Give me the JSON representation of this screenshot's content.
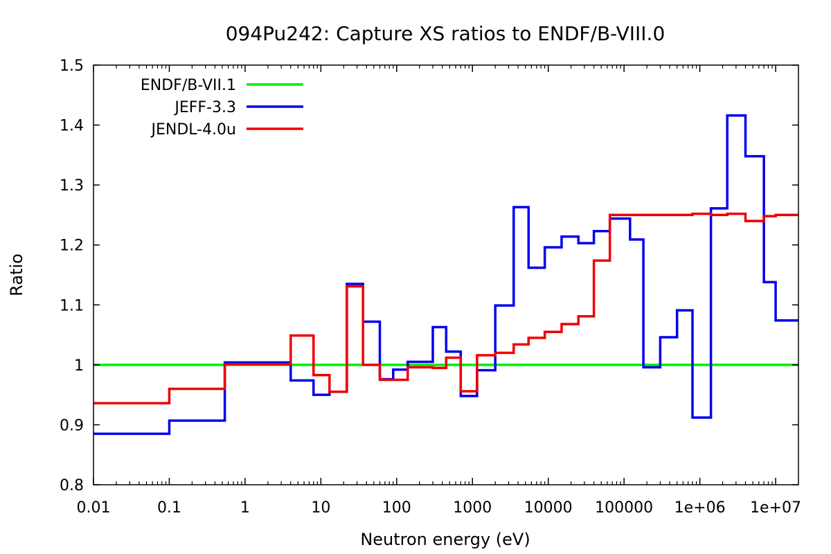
{
  "chart_data": {
    "type": "line",
    "step": true,
    "title": "094Pu242: Capture XS ratios to ENDF/B-VIII.0",
    "xlabel": "Neutron energy (eV)",
    "ylabel": "Ratio",
    "xscale": "log",
    "xlim": [
      0.01,
      20000000
    ],
    "ylim": [
      0.8,
      1.5
    ],
    "xticks": [
      {
        "value": 0.01,
        "label": "0.01"
      },
      {
        "value": 0.1,
        "label": "0.1"
      },
      {
        "value": 1,
        "label": "1"
      },
      {
        "value": 10,
        "label": "10"
      },
      {
        "value": 100,
        "label": "100"
      },
      {
        "value": 1000,
        "label": "1000"
      },
      {
        "value": 10000,
        "label": "10000"
      },
      {
        "value": 100000,
        "label": "100000"
      },
      {
        "value": 1000000,
        "label": "1e+06"
      },
      {
        "value": 10000000,
        "label": "1e+07"
      }
    ],
    "yticks": [
      {
        "value": 0.8,
        "label": "0.8"
      },
      {
        "value": 0.9,
        "label": "0.9"
      },
      {
        "value": 1.0,
        "label": "1"
      },
      {
        "value": 1.1,
        "label": "1.1"
      },
      {
        "value": 1.2,
        "label": "1.2"
      },
      {
        "value": 1.3,
        "label": "1.3"
      },
      {
        "value": 1.4,
        "label": "1.4"
      },
      {
        "value": 1.5,
        "label": "1.5"
      }
    ],
    "grid": false,
    "legend_position": "top-left",
    "series": [
      {
        "name": "ENDF/B-VII.1",
        "color": "#00ee00",
        "edges": [
          0.01,
          20000000
        ],
        "values": [
          1.0
        ]
      },
      {
        "name": "JEFF-3.3",
        "color": "#0000ee",
        "edges": [
          0.01,
          0.1,
          0.54,
          4,
          8,
          13,
          22,
          36,
          60,
          90,
          140,
          300,
          450,
          700,
          1150,
          2000,
          3500,
          5500,
          9000,
          15000,
          25000,
          40000,
          65000,
          120000,
          180000,
          300000,
          500000,
          800000,
          1400000,
          2300000,
          4000000,
          7000000,
          10000000,
          20000000
        ],
        "values": [
          0.885,
          0.907,
          1.004,
          0.974,
          0.95,
          0.955,
          1.135,
          1.072,
          0.976,
          0.992,
          1.005,
          1.063,
          1.022,
          0.948,
          0.991,
          1.099,
          1.263,
          1.162,
          1.196,
          1.214,
          1.203,
          1.223,
          1.244,
          1.209,
          0.996,
          1.046,
          1.091,
          0.912,
          1.261,
          1.416,
          1.348,
          1.138,
          1.074
        ]
      },
      {
        "name": "JENDL-4.0u",
        "color": "#ee0000",
        "edges": [
          0.01,
          0.1,
          0.54,
          4,
          8,
          13,
          22,
          36,
          60,
          90,
          140,
          300,
          450,
          700,
          1150,
          2000,
          3500,
          5500,
          9000,
          15000,
          25000,
          40000,
          65000,
          800000,
          1400000,
          2300000,
          4000000,
          7000000,
          10000000,
          20000000
        ],
        "values": [
          0.936,
          0.96,
          1.001,
          1.049,
          0.983,
          0.955,
          1.131,
          1.0,
          0.975,
          0.975,
          0.996,
          0.995,
          1.012,
          0.956,
          1.016,
          1.02,
          1.034,
          1.045,
          1.055,
          1.068,
          1.081,
          1.174,
          1.25,
          1.252,
          1.25,
          1.252,
          1.24,
          1.248,
          1.25
        ]
      }
    ]
  }
}
